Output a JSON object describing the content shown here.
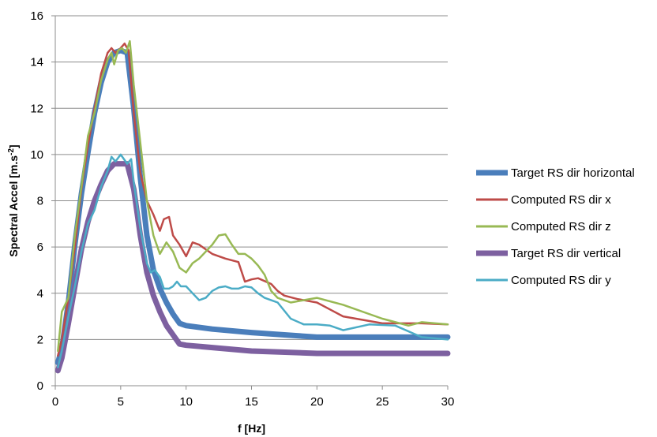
{
  "chart_data": {
    "type": "line",
    "xlabel": "f [Hz]",
    "ylabel_main": "Spectral Accel [m.s",
    "ylabel_sup": "-2",
    "ylabel_end": "]",
    "xlim": [
      0,
      30
    ],
    "ylim": [
      0,
      16
    ],
    "xticks": [
      0,
      5,
      10,
      15,
      20,
      25,
      30
    ],
    "yticks": [
      0,
      2,
      4,
      6,
      8,
      10,
      12,
      14,
      16
    ],
    "grid": "horizontal",
    "legend_position": "right",
    "series": [
      {
        "name": "Target RS dir horizontal",
        "color": "#4a7ebb",
        "width": "thick",
        "points": [
          [
            0.2,
            1.0
          ],
          [
            0.5,
            1.6
          ],
          [
            1,
            3.6
          ],
          [
            1.5,
            6.1
          ],
          [
            2,
            8.3
          ],
          [
            2.5,
            10.1
          ],
          [
            3,
            11.8
          ],
          [
            3.5,
            13.1
          ],
          [
            4,
            14.0
          ],
          [
            4.5,
            14.4
          ],
          [
            5,
            14.5
          ],
          [
            5.5,
            14.4
          ],
          [
            6,
            12.0
          ],
          [
            6.5,
            9.0
          ],
          [
            7,
            6.5
          ],
          [
            7.5,
            5.0
          ],
          [
            8,
            4.2
          ],
          [
            8.5,
            3.6
          ],
          [
            9,
            3.1
          ],
          [
            9.5,
            2.7
          ],
          [
            10,
            2.6
          ],
          [
            12,
            2.45
          ],
          [
            15,
            2.3
          ],
          [
            20,
            2.1
          ],
          [
            25,
            2.1
          ],
          [
            30,
            2.1
          ]
        ]
      },
      {
        "name": "Computed RS dir x",
        "color": "#be4b48",
        "width": "thin",
        "points": [
          [
            0.2,
            1.3
          ],
          [
            0.5,
            2.0
          ],
          [
            1,
            3.8
          ],
          [
            1.5,
            6.0
          ],
          [
            2,
            8.5
          ],
          [
            2.5,
            10.4
          ],
          [
            3,
            12.0
          ],
          [
            3.5,
            13.5
          ],
          [
            4,
            14.4
          ],
          [
            4.3,
            14.6
          ],
          [
            4.6,
            14.4
          ],
          [
            5,
            14.6
          ],
          [
            5.3,
            14.8
          ],
          [
            5.6,
            14.5
          ],
          [
            6,
            11.8
          ],
          [
            6.5,
            9.2
          ],
          [
            7,
            8.0
          ],
          [
            7.5,
            7.4
          ],
          [
            8,
            6.7
          ],
          [
            8.3,
            7.2
          ],
          [
            8.7,
            7.3
          ],
          [
            9,
            6.5
          ],
          [
            9.5,
            6.1
          ],
          [
            10,
            5.6
          ],
          [
            10.5,
            6.2
          ],
          [
            11,
            6.1
          ],
          [
            12,
            5.7
          ],
          [
            13,
            5.5
          ],
          [
            14,
            5.35
          ],
          [
            14.5,
            4.5
          ],
          [
            15,
            4.6
          ],
          [
            15.5,
            4.65
          ],
          [
            16.5,
            4.4
          ],
          [
            17,
            4.1
          ],
          [
            17.5,
            3.9
          ],
          [
            18.5,
            3.75
          ],
          [
            20,
            3.6
          ],
          [
            21,
            3.3
          ],
          [
            22,
            3.0
          ],
          [
            25,
            2.7
          ],
          [
            28,
            2.7
          ],
          [
            30,
            2.65
          ]
        ]
      },
      {
        "name": "Computed RS dir z",
        "color": "#98b954",
        "width": "thin",
        "points": [
          [
            0.2,
            1.5
          ],
          [
            0.5,
            3.2
          ],
          [
            1,
            3.8
          ],
          [
            1.5,
            6.5
          ],
          [
            2,
            8.6
          ],
          [
            2.5,
            10.8
          ],
          [
            3,
            11.8
          ],
          [
            3.5,
            13.2
          ],
          [
            4,
            14.1
          ],
          [
            4.3,
            14.4
          ],
          [
            4.5,
            13.9
          ],
          [
            4.8,
            14.5
          ],
          [
            5.1,
            14.6
          ],
          [
            5.4,
            14.4
          ],
          [
            5.7,
            14.9
          ],
          [
            6,
            13.0
          ],
          [
            6.5,
            10.5
          ],
          [
            7,
            8.0
          ],
          [
            7.5,
            6.5
          ],
          [
            8,
            5.7
          ],
          [
            8.5,
            6.2
          ],
          [
            9,
            5.8
          ],
          [
            9.5,
            5.1
          ],
          [
            10,
            4.9
          ],
          [
            10.5,
            5.3
          ],
          [
            11,
            5.5
          ],
          [
            12,
            6.1
          ],
          [
            12.5,
            6.5
          ],
          [
            13,
            6.55
          ],
          [
            13.5,
            6.1
          ],
          [
            14,
            5.7
          ],
          [
            14.5,
            5.7
          ],
          [
            15,
            5.5
          ],
          [
            15.5,
            5.2
          ],
          [
            16,
            4.8
          ],
          [
            16.5,
            4.1
          ],
          [
            17,
            3.8
          ],
          [
            18,
            3.6
          ],
          [
            19,
            3.7
          ],
          [
            20,
            3.8
          ],
          [
            22,
            3.5
          ],
          [
            25,
            2.9
          ],
          [
            27,
            2.6
          ],
          [
            28,
            2.75
          ],
          [
            30,
            2.65
          ]
        ]
      },
      {
        "name": "Target RS dir vertical",
        "color": "#7d60a0",
        "width": "thick",
        "points": [
          [
            0.2,
            0.65
          ],
          [
            0.5,
            1.2
          ],
          [
            1,
            2.7
          ],
          [
            1.5,
            4.3
          ],
          [
            2,
            5.9
          ],
          [
            2.5,
            7.1
          ],
          [
            3,
            8.0
          ],
          [
            3.5,
            8.7
          ],
          [
            4,
            9.3
          ],
          [
            4.5,
            9.6
          ],
          [
            5,
            9.6
          ],
          [
            5.5,
            9.6
          ],
          [
            6,
            8.5
          ],
          [
            6.5,
            6.5
          ],
          [
            7,
            4.9
          ],
          [
            7.5,
            3.9
          ],
          [
            8,
            3.2
          ],
          [
            8.5,
            2.6
          ],
          [
            9,
            2.2
          ],
          [
            9.5,
            1.8
          ],
          [
            10,
            1.75
          ],
          [
            12,
            1.65
          ],
          [
            15,
            1.5
          ],
          [
            20,
            1.4
          ],
          [
            25,
            1.4
          ],
          [
            30,
            1.4
          ]
        ]
      },
      {
        "name": "Computed RS dir y",
        "color": "#4bacc6",
        "width": "thin",
        "points": [
          [
            0.2,
            0.8
          ],
          [
            0.5,
            1.5
          ],
          [
            1,
            3.0
          ],
          [
            1.5,
            4.3
          ],
          [
            2,
            5.8
          ],
          [
            2.5,
            7.0
          ],
          [
            3,
            7.6
          ],
          [
            3.5,
            8.6
          ],
          [
            4,
            9.3
          ],
          [
            4.3,
            9.9
          ],
          [
            4.6,
            9.7
          ],
          [
            5,
            10.0
          ],
          [
            5.5,
            9.6
          ],
          [
            5.8,
            9.8
          ],
          [
            6,
            8.8
          ],
          [
            6.5,
            6.8
          ],
          [
            7,
            5.3
          ],
          [
            7.3,
            4.9
          ],
          [
            7.6,
            5.0
          ],
          [
            8,
            4.7
          ],
          [
            8.3,
            4.2
          ],
          [
            8.7,
            4.2
          ],
          [
            9,
            4.3
          ],
          [
            9.3,
            4.5
          ],
          [
            9.6,
            4.3
          ],
          [
            10,
            4.3
          ],
          [
            10.5,
            4.0
          ],
          [
            11,
            3.7
          ],
          [
            11.5,
            3.8
          ],
          [
            12,
            4.1
          ],
          [
            12.5,
            4.25
          ],
          [
            13,
            4.3
          ],
          [
            13.5,
            4.2
          ],
          [
            14,
            4.2
          ],
          [
            14.5,
            4.3
          ],
          [
            15,
            4.25
          ],
          [
            15.5,
            4.0
          ],
          [
            16,
            3.8
          ],
          [
            17,
            3.6
          ],
          [
            18,
            2.9
          ],
          [
            19,
            2.65
          ],
          [
            20,
            2.65
          ],
          [
            21,
            2.6
          ],
          [
            22,
            2.4
          ],
          [
            24,
            2.65
          ],
          [
            26,
            2.6
          ],
          [
            28,
            2.1
          ],
          [
            30,
            2.0
          ]
        ]
      }
    ]
  }
}
